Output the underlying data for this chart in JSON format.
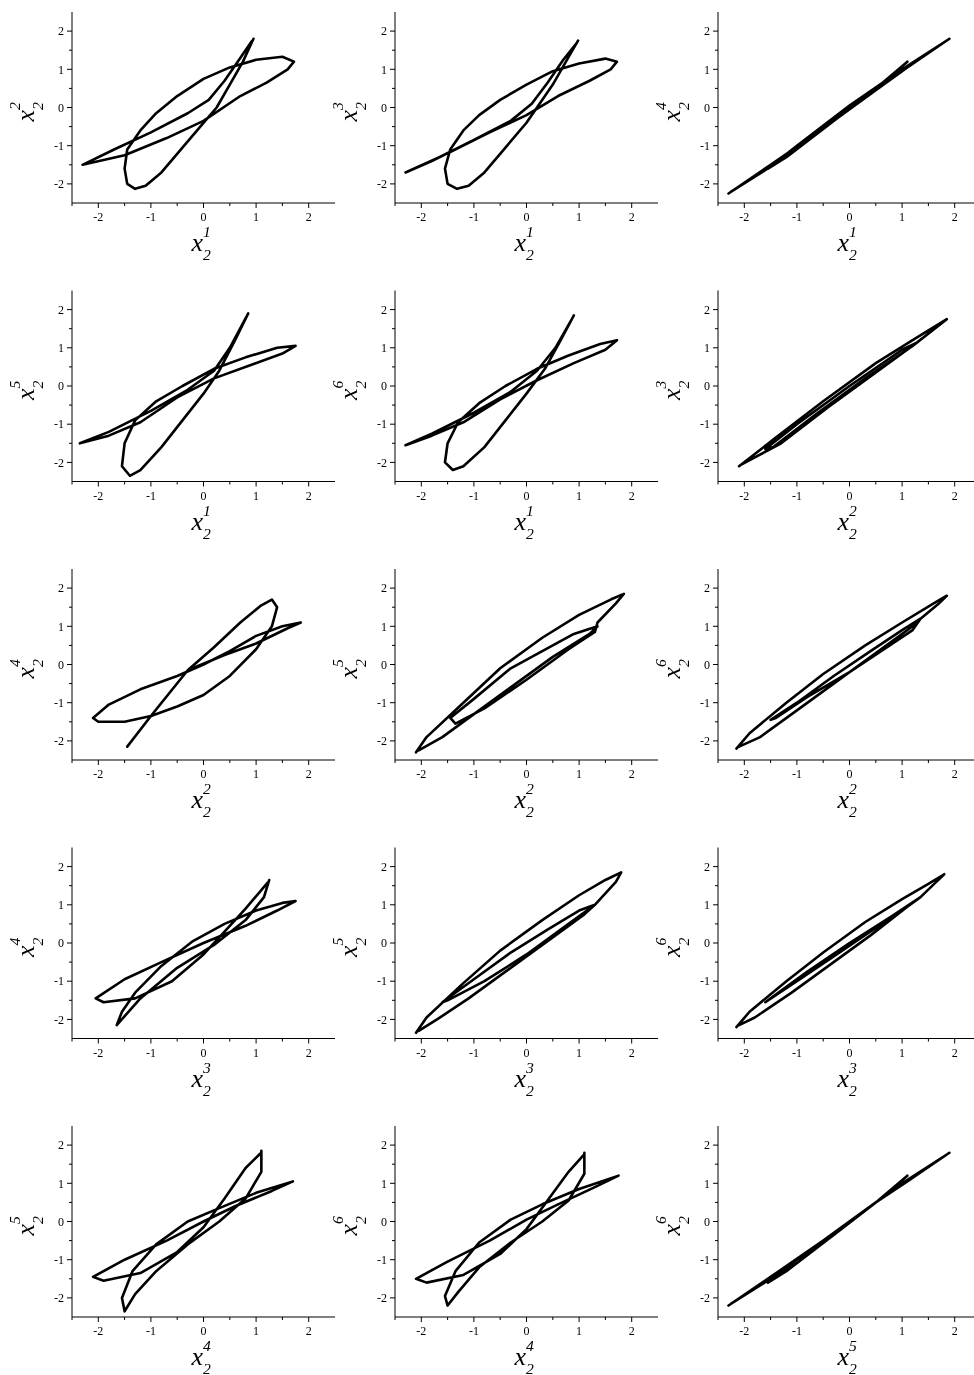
{
  "chart_data": [
    {
      "type": "line",
      "xlabel": "x$_{2}$$^{1}$",
      "ylabel": "x$_{2}$$^{2}$",
      "xlim": [
        -2.5,
        2.5
      ],
      "ylim": [
        -2.5,
        2.5
      ],
      "xticks": [
        {
          "value": -2.5,
          "label": null
        },
        -2,
        {
          "value": -1.5,
          "label": null
        },
        -1,
        {
          "value": -0.5,
          "label": null
        },
        0,
        {
          "value": 0.5,
          "label": null
        },
        1,
        {
          "value": 1.5,
          "label": null
        },
        2
      ],
      "yticks": [
        -2,
        {
          "value": -1.5,
          "label": null
        },
        -1,
        {
          "value": -0.5,
          "label": null
        },
        0,
        {
          "value": 0.5,
          "label": null
        },
        1,
        {
          "value": 1.5,
          "label": null
        },
        2
      ],
      "series": [
        {
          "color": "#000000",
          "x": [
            0.95,
            0.75,
            0.5,
            0.25,
            0,
            -0.4,
            -0.8,
            -1.1,
            -1.3,
            -1.45,
            -1.5,
            -1.45,
            -1.2,
            -0.9,
            -0.5,
            0,
            0.5,
            1.0,
            1.5,
            1.72,
            1.6,
            1.2,
            0.7,
            0,
            -0.7,
            -1.5,
            -2.3,
            -1.7,
            -1.0,
            -0.3,
            0.1,
            0.4,
            0.65,
            0.92
          ],
          "values": [
            1.8,
            1.2,
            0.6,
            0.0,
            -0.4,
            -1.05,
            -1.7,
            -2.05,
            -2.13,
            -2.0,
            -1.6,
            -1.1,
            -0.6,
            -0.15,
            0.3,
            0.75,
            1.05,
            1.25,
            1.33,
            1.2,
            1.0,
            0.65,
            0.3,
            -0.35,
            -0.8,
            -1.25,
            -1.5,
            -1.1,
            -0.65,
            -0.15,
            0.2,
            0.7,
            1.2,
            1.74
          ]
        }
      ]
    },
    {
      "type": "line",
      "xlabel": "x$_{2}$$^{1}$",
      "ylabel": "x$_{2}$$^{3}$",
      "xlim": [
        -2.5,
        2.5
      ],
      "ylim": [
        -2.5,
        2.5
      ],
      "xticks": [
        {
          "value": -2.5,
          "label": null
        },
        -2,
        {
          "value": -1.5,
          "label": null
        },
        -1,
        {
          "value": -0.5,
          "label": null
        },
        0,
        {
          "value": 0.5,
          "label": null
        },
        1,
        {
          "value": 1.5,
          "label": null
        },
        2
      ],
      "yticks": [
        -2,
        {
          "value": -1.5,
          "label": null
        },
        -1,
        {
          "value": -0.5,
          "label": null
        },
        0,
        {
          "value": 0.5,
          "label": null
        },
        1,
        {
          "value": 1.5,
          "label": null
        },
        2
      ],
      "series": [
        {
          "color": "#000000",
          "x": [
            0.98,
            0.75,
            0.5,
            0.2,
            0,
            -0.4,
            -0.8,
            -1.1,
            -1.32,
            -1.5,
            -1.55,
            -1.45,
            -1.2,
            -0.9,
            -0.5,
            0,
            0.5,
            1.0,
            1.5,
            1.72,
            1.6,
            1.2,
            0.6,
            0,
            -0.7,
            -1.5,
            -2.3,
            -1.8,
            -1.0,
            -0.3,
            0.1,
            0.4,
            0.7,
            0.95
          ],
          "values": [
            1.75,
            1.2,
            0.6,
            0.0,
            -0.4,
            -1.05,
            -1.7,
            -2.05,
            -2.13,
            -2.0,
            -1.6,
            -1.1,
            -0.6,
            -0.2,
            0.2,
            0.6,
            0.95,
            1.15,
            1.28,
            1.2,
            1.0,
            0.7,
            0.3,
            -0.2,
            -0.65,
            -1.2,
            -1.7,
            -1.4,
            -0.85,
            -0.35,
            0.1,
            0.65,
            1.25,
            1.68
          ]
        }
      ]
    },
    {
      "type": "line",
      "xlabel": "x$_{2}$$^{1}$",
      "ylabel": "x$_{2}$$^{4}$",
      "xlim": [
        -2.5,
        2.5
      ],
      "ylim": [
        -2.5,
        2.5
      ],
      "xticks": [
        {
          "value": -2.5,
          "label": null
        },
        -2,
        {
          "value": -1.5,
          "label": null
        },
        -1,
        {
          "value": -0.5,
          "label": null
        },
        0,
        {
          "value": 0.5,
          "label": null
        },
        1,
        {
          "value": 1.5,
          "label": null
        },
        2
      ],
      "yticks": [
        -2,
        {
          "value": -1.5,
          "label": null
        },
        -1,
        {
          "value": -0.5,
          "label": null
        },
        0,
        {
          "value": 0.5,
          "label": null
        },
        1,
        {
          "value": 1.5,
          "label": null
        },
        2
      ],
      "series": [
        {
          "color": "#000000",
          "x": [
            -2.3,
            -1.5,
            -0.5,
            0.5,
            1.1,
            1.9,
            1.0,
            0,
            -1.0,
            -1.55,
            -1.2,
            -0.3,
            0.6,
            1.1,
            0.5,
            -0.5,
            -1.5,
            -2.25
          ],
          "values": [
            -2.25,
            -1.5,
            -0.55,
            0.45,
            1.05,
            1.8,
            1.0,
            0.05,
            -1.0,
            -1.6,
            -1.3,
            -0.35,
            0.6,
            1.2,
            0.5,
            -0.5,
            -1.55,
            -2.2
          ]
        }
      ]
    },
    {
      "type": "line",
      "xlabel": "x$_{2}$$^{1}$",
      "ylabel": "x$_{2}$$^{5}$",
      "xlim": [
        -2.5,
        2.5
      ],
      "ylim": [
        -2.5,
        2.5
      ],
      "xticks": [
        {
          "value": -2.5,
          "label": null
        },
        -2,
        {
          "value": -1.5,
          "label": null
        },
        -1,
        {
          "value": -0.5,
          "label": null
        },
        0,
        {
          "value": 0.5,
          "label": null
        },
        1,
        {
          "value": 1.5,
          "label": null
        },
        2
      ],
      "yticks": [
        -2,
        {
          "value": -1.5,
          "label": null
        },
        -1,
        {
          "value": -0.5,
          "label": null
        },
        0,
        {
          "value": 0.5,
          "label": null
        },
        1,
        {
          "value": 1.5,
          "label": null
        },
        2
      ],
      "series": [
        {
          "color": "#000000",
          "x": [
            0.85,
            0.6,
            0.3,
            0,
            -0.4,
            -0.8,
            -1.2,
            -1.4,
            -1.55,
            -1.5,
            -1.3,
            -0.9,
            -0.4,
            0.2,
            0.8,
            1.4,
            1.75,
            1.5,
            0.9,
            0.2,
            -0.5,
            -1.2,
            -1.8,
            -2.35,
            -1.8,
            -1.0,
            -0.3,
            0.2,
            0.5,
            0.82
          ],
          "values": [
            1.9,
            1.2,
            0.4,
            -0.2,
            -0.9,
            -1.6,
            -2.2,
            -2.35,
            -2.1,
            -1.5,
            -0.9,
            -0.4,
            0.0,
            0.45,
            0.75,
            1.0,
            1.05,
            0.85,
            0.55,
            0.2,
            -0.3,
            -0.95,
            -1.3,
            -1.5,
            -1.2,
            -0.65,
            -0.1,
            0.4,
            1.0,
            1.82
          ]
        }
      ]
    },
    {
      "type": "line",
      "xlabel": "x$_{2}$$^{1}$",
      "ylabel": "x$_{2}$$^{6}$",
      "xlim": [
        -2.5,
        2.5
      ],
      "ylim": [
        -2.5,
        2.5
      ],
      "xticks": [
        {
          "value": -2.5,
          "label": null
        },
        -2,
        {
          "value": -1.5,
          "label": null
        },
        -1,
        {
          "value": -0.5,
          "label": null
        },
        0,
        {
          "value": 0.5,
          "label": null
        },
        1,
        {
          "value": 1.5,
          "label": null
        },
        2
      ],
      "yticks": [
        -2,
        {
          "value": -1.5,
          "label": null
        },
        -1,
        {
          "value": -0.5,
          "label": null
        },
        0,
        {
          "value": 0.5,
          "label": null
        },
        1,
        {
          "value": 1.5,
          "label": null
        },
        2
      ],
      "series": [
        {
          "color": "#000000",
          "x": [
            0.9,
            0.65,
            0.35,
            0,
            -0.4,
            -0.8,
            -1.2,
            -1.4,
            -1.55,
            -1.5,
            -1.3,
            -0.9,
            -0.4,
            0.2,
            0.8,
            1.4,
            1.72,
            1.5,
            0.9,
            0.2,
            -0.5,
            -1.2,
            -1.8,
            -2.3,
            -1.8,
            -1.0,
            -0.3,
            0.2,
            0.55,
            0.87
          ],
          "values": [
            1.85,
            1.2,
            0.45,
            -0.2,
            -0.9,
            -1.6,
            -2.1,
            -2.2,
            -2.0,
            -1.5,
            -0.95,
            -0.45,
            0.0,
            0.45,
            0.8,
            1.1,
            1.2,
            0.95,
            0.6,
            0.15,
            -0.35,
            -0.95,
            -1.3,
            -1.55,
            -1.25,
            -0.7,
            -0.15,
            0.4,
            1.0,
            1.77
          ]
        }
      ]
    },
    {
      "type": "line",
      "xlabel": "x$_{2}$$^{2}$",
      "ylabel": "x$_{2}$$^{3}$",
      "xlim": [
        -2.5,
        2.5
      ],
      "ylim": [
        -2.5,
        2.5
      ],
      "xticks": [
        {
          "value": -2.5,
          "label": null
        },
        -2,
        {
          "value": -1.5,
          "label": null
        },
        -1,
        {
          "value": -0.5,
          "label": null
        },
        0,
        {
          "value": 0.5,
          "label": null
        },
        1,
        {
          "value": 1.5,
          "label": null
        },
        2
      ],
      "yticks": [
        -2,
        {
          "value": -1.5,
          "label": null
        },
        -1,
        {
          "value": -0.5,
          "label": null
        },
        0,
        {
          "value": 0.5,
          "label": null
        },
        1,
        {
          "value": 1.5,
          "label": null
        },
        2
      ],
      "series": [
        {
          "color": "#000000",
          "x": [
            -2.1,
            -1.4,
            -0.5,
            0.5,
            1.2,
            1.85,
            1.2,
            0.3,
            -0.6,
            -1.45,
            -1.6,
            -1.0,
            0,
            1.0,
            1.3,
            0.6,
            -0.4,
            -1.3,
            -2.05
          ],
          "values": [
            -2.1,
            -1.35,
            -0.4,
            0.6,
            1.2,
            1.75,
            1.05,
            0.2,
            -0.7,
            -1.6,
            -1.65,
            -1.0,
            0.0,
            0.95,
            1.15,
            0.45,
            -0.55,
            -1.5,
            -2.05
          ]
        }
      ]
    },
    {
      "type": "line",
      "xlabel": "x$_{2}$$^{2}$",
      "ylabel": "x$_{2}$$^{4}$",
      "xlim": [
        -2.5,
        2.5
      ],
      "ylim": [
        -2.5,
        2.5
      ],
      "xticks": [
        {
          "value": -2.5,
          "label": null
        },
        -2,
        {
          "value": -1.5,
          "label": null
        },
        -1,
        {
          "value": -0.5,
          "label": null
        },
        0,
        {
          "value": 0.5,
          "label": null
        },
        1,
        {
          "value": 1.5,
          "label": null
        },
        2
      ],
      "yticks": [
        -2,
        {
          "value": -1.5,
          "label": null
        },
        -1,
        {
          "value": -0.5,
          "label": null
        },
        0,
        {
          "value": 0.5,
          "label": null
        },
        1,
        {
          "value": 1.5,
          "label": null
        },
        2
      ],
      "series": [
        {
          "color": "#000000",
          "x": [
            -1.45,
            -1.0,
            -0.3,
            0.2,
            0.7,
            1.1,
            1.3,
            1.4,
            1.3,
            1.0,
            0.5,
            0,
            -0.5,
            -1.0,
            -1.5,
            -2.0,
            -2.1,
            -1.8,
            -1.2,
            -0.5,
            0,
            0.5,
            1.0,
            1.5,
            1.85,
            1.6,
            1.0,
            0.4,
            -0.3
          ],
          "values": [
            -2.15,
            -1.35,
            -0.15,
            0.45,
            1.1,
            1.55,
            1.7,
            1.5,
            1.0,
            0.4,
            -0.3,
            -0.8,
            -1.1,
            -1.35,
            -1.5,
            -1.5,
            -1.4,
            -1.05,
            -0.65,
            -0.3,
            0.0,
            0.35,
            0.75,
            1.0,
            1.1,
            0.95,
            0.55,
            0.25,
            -0.15
          ]
        }
      ]
    },
    {
      "type": "line",
      "xlabel": "x$_{2}$$^{2}$",
      "ylabel": "x$_{2}$$^{5}$",
      "xlim": [
        -2.5,
        2.5
      ],
      "ylim": [
        -2.5,
        2.5
      ],
      "xticks": [
        {
          "value": -2.5,
          "label": null
        },
        -2,
        {
          "value": -1.5,
          "label": null
        },
        -1,
        {
          "value": -0.5,
          "label": null
        },
        0,
        {
          "value": 0.5,
          "label": null
        },
        1,
        {
          "value": 1.5,
          "label": null
        },
        2
      ],
      "yticks": [
        -2,
        {
          "value": -1.5,
          "label": null
        },
        -1,
        {
          "value": -0.5,
          "label": null
        },
        0,
        {
          "value": 0.5,
          "label": null
        },
        1,
        {
          "value": 1.5,
          "label": null
        },
        2
      ],
      "series": [
        {
          "color": "#000000",
          "x": [
            -2.1,
            -1.9,
            -1.2,
            -0.5,
            0.3,
            1.0,
            1.6,
            1.85,
            1.7,
            1.35,
            1.3,
            0.8,
            0,
            -0.8,
            -1.35,
            -1.45,
            -1.0,
            -0.3,
            0.3,
            0.9,
            1.35,
            1.2,
            0.5,
            -0.3,
            -1.0,
            -1.6,
            -2.05
          ],
          "values": [
            -2.3,
            -1.9,
            -1.0,
            -0.1,
            0.7,
            1.3,
            1.7,
            1.85,
            1.6,
            1.1,
            0.85,
            0.4,
            -0.4,
            -1.15,
            -1.55,
            -1.4,
            -0.9,
            -0.1,
            0.35,
            0.8,
            1.0,
            0.8,
            0.2,
            -0.6,
            -1.3,
            -1.9,
            -2.25
          ]
        }
      ]
    },
    {
      "type": "line",
      "xlabel": "x$_{2}$$^{2}$",
      "ylabel": "x$_{2}$$^{6}$",
      "xlim": [
        -2.5,
        2.5
      ],
      "ylim": [
        -2.5,
        2.5
      ],
      "xticks": [
        {
          "value": -2.5,
          "label": null
        },
        -2,
        {
          "value": -1.5,
          "label": null
        },
        -1,
        {
          "value": -0.5,
          "label": null
        },
        0,
        {
          "value": 0.5,
          "label": null
        },
        1,
        {
          "value": 1.5,
          "label": null
        },
        2
      ],
      "yticks": [
        -2,
        {
          "value": -1.5,
          "label": null
        },
        -1,
        {
          "value": -0.5,
          "label": null
        },
        0,
        {
          "value": 0.5,
          "label": null
        },
        1,
        {
          "value": 1.5,
          "label": null
        },
        2
      ],
      "series": [
        {
          "color": "#000000",
          "x": [
            -2.15,
            -1.9,
            -1.2,
            -0.5,
            0.3,
            1.0,
            1.6,
            1.85,
            1.7,
            1.35,
            1.2,
            0.6,
            0,
            -0.8,
            -1.4,
            -1.5,
            -1.0,
            -0.3,
            0.4,
            1.0,
            1.35,
            1.2,
            0.5,
            -0.3,
            -1.0,
            -1.7,
            -2.1
          ],
          "values": [
            -2.2,
            -1.8,
            -1.0,
            -0.25,
            0.5,
            1.1,
            1.6,
            1.8,
            1.6,
            1.2,
            0.9,
            0.35,
            -0.2,
            -0.85,
            -1.4,
            -1.45,
            -1.0,
            -0.3,
            0.35,
            0.9,
            1.2,
            1.0,
            0.3,
            -0.5,
            -1.2,
            -1.9,
            -2.15
          ]
        }
      ]
    },
    {
      "type": "line",
      "xlabel": "x$_{2}$$^{3}$",
      "ylabel": "x$_{2}$$^{4}$",
      "xlim": [
        -2.5,
        2.5
      ],
      "ylim": [
        -2.5,
        2.5
      ],
      "xticks": [
        {
          "value": -2.5,
          "label": null
        },
        -2,
        {
          "value": -1.5,
          "label": null
        },
        -1,
        {
          "value": -0.5,
          "label": null
        },
        0,
        {
          "value": 0.5,
          "label": null
        },
        1,
        {
          "value": 1.5,
          "label": null
        },
        2
      ],
      "yticks": [
        -2,
        {
          "value": -1.5,
          "label": null
        },
        -1,
        {
          "value": -0.5,
          "label": null
        },
        0,
        {
          "value": 0.5,
          "label": null
        },
        1,
        {
          "value": 1.5,
          "label": null
        },
        2
      ],
      "series": [
        {
          "color": "#000000",
          "x": [
            1.25,
            1.15,
            0.8,
            0.2,
            -0.5,
            -1.2,
            -1.65,
            -1.55,
            -1.3,
            -0.8,
            -0.2,
            0.4,
            1.0,
            1.5,
            1.75,
            1.4,
            0.8,
            0,
            -0.8,
            -1.5,
            -2.05,
            -1.9,
            -1.3,
            -0.6,
            0,
            0.4,
            0.8,
            1.22
          ],
          "values": [
            1.65,
            1.2,
            0.6,
            -0.05,
            -0.65,
            -1.45,
            -2.15,
            -1.8,
            -1.3,
            -0.6,
            0.05,
            0.5,
            0.85,
            1.05,
            1.1,
            0.85,
            0.45,
            0.0,
            -0.5,
            -0.95,
            -1.45,
            -1.55,
            -1.45,
            -1.0,
            -0.3,
            0.3,
            0.9,
            1.58
          ]
        }
      ]
    },
    {
      "type": "line",
      "xlabel": "x$_{2}$$^{3}$",
      "ylabel": "x$_{2}$$^{5}$",
      "xlim": [
        -2.5,
        2.5
      ],
      "ylim": [
        -2.5,
        2.5
      ],
      "xticks": [
        {
          "value": -2.5,
          "label": null
        },
        -2,
        {
          "value": -1.5,
          "label": null
        },
        -1,
        {
          "value": -0.5,
          "label": null
        },
        0,
        {
          "value": 0.5,
          "label": null
        },
        1,
        {
          "value": 1.5,
          "label": null
        },
        2
      ],
      "yticks": [
        -2,
        {
          "value": -1.5,
          "label": null
        },
        -1,
        {
          "value": -0.5,
          "label": null
        },
        0,
        {
          "value": 0.5,
          "label": null
        },
        1,
        {
          "value": 1.5,
          "label": null
        },
        2
      ],
      "series": [
        {
          "color": "#000000",
          "x": [
            -2.1,
            -1.9,
            -1.2,
            -0.5,
            0.3,
            1.0,
            1.5,
            1.8,
            1.7,
            1.3,
            0.8,
            0,
            -0.8,
            -1.5,
            -1.6,
            -1.0,
            -0.3,
            0.4,
            1.0,
            1.3,
            1.1,
            0.4,
            -0.4,
            -1.1,
            -1.7,
            -2.05
          ],
          "values": [
            -2.35,
            -1.95,
            -1.05,
            -0.2,
            0.6,
            1.25,
            1.65,
            1.85,
            1.6,
            1.0,
            0.5,
            -0.3,
            -1.0,
            -1.5,
            -1.55,
            -0.95,
            -0.25,
            0.35,
            0.85,
            1.0,
            0.75,
            0.05,
            -0.75,
            -1.45,
            -2.0,
            -2.3
          ]
        }
      ]
    },
    {
      "type": "line",
      "xlabel": "x$_{2}$$^{3}$",
      "ylabel": "x$_{2}$$^{6}$",
      "xlim": [
        -2.5,
        2.5
      ],
      "ylim": [
        -2.5,
        2.5
      ],
      "xticks": [
        {
          "value": -2.5,
          "label": null
        },
        -2,
        {
          "value": -1.5,
          "label": null
        },
        -1,
        {
          "value": -0.5,
          "label": null
        },
        0,
        {
          "value": 0.5,
          "label": null
        },
        1,
        {
          "value": 1.5,
          "label": null
        },
        2
      ],
      "yticks": [
        -2,
        {
          "value": -1.5,
          "label": null
        },
        -1,
        {
          "value": -0.5,
          "label": null
        },
        0,
        {
          "value": 0.5,
          "label": null
        },
        1,
        {
          "value": 1.5,
          "label": null
        },
        2
      ],
      "series": [
        {
          "color": "#000000",
          "x": [
            -2.15,
            -1.9,
            -1.2,
            -0.5,
            0.3,
            1.0,
            1.5,
            1.8,
            1.65,
            1.35,
            0.8,
            0,
            -0.8,
            -1.5,
            -1.6,
            -1.0,
            -0.3,
            0.4,
            1.0,
            1.35,
            1.1,
            0.4,
            -0.4,
            -1.1,
            -1.8,
            -2.1
          ],
          "values": [
            -2.2,
            -1.8,
            -1.0,
            -0.25,
            0.55,
            1.15,
            1.55,
            1.8,
            1.6,
            1.2,
            0.7,
            0.0,
            -0.75,
            -1.45,
            -1.55,
            -1.0,
            -0.35,
            0.3,
            0.85,
            1.2,
            0.95,
            0.2,
            -0.6,
            -1.3,
            -1.95,
            -2.15
          ]
        }
      ]
    },
    {
      "type": "line",
      "xlabel": "x$_{2}$$^{4}$",
      "ylabel": "x$_{2}$$^{5}$",
      "xlim": [
        -2.5,
        2.5
      ],
      "ylim": [
        -2.5,
        2.5
      ],
      "xticks": [
        {
          "value": -2.5,
          "label": null
        },
        -2,
        {
          "value": -1.5,
          "label": null
        },
        -1,
        {
          "value": -0.5,
          "label": null
        },
        0,
        {
          "value": 0.5,
          "label": null
        },
        1,
        {
          "value": 1.5,
          "label": null
        },
        2
      ],
      "yticks": [
        -2,
        {
          "value": -1.5,
          "label": null
        },
        -1,
        {
          "value": -0.5,
          "label": null
        },
        0,
        {
          "value": 0.5,
          "label": null
        },
        1,
        {
          "value": 1.5,
          "label": null
        },
        2
      ],
      "series": [
        {
          "color": "#000000",
          "x": [
            1.1,
            1.1,
            0.8,
            0.3,
            -0.3,
            -0.9,
            -1.3,
            -1.5,
            -1.55,
            -1.35,
            -0.9,
            -0.3,
            0.3,
            1.0,
            1.7,
            1.3,
            0.6,
            0,
            -0.7,
            -1.5,
            -2.1,
            -1.9,
            -1.2,
            -0.5,
            0,
            0.4,
            0.8,
            1.08
          ],
          "values": [
            1.85,
            1.3,
            0.6,
            0.0,
            -0.6,
            -1.3,
            -1.9,
            -2.35,
            -2.0,
            -1.3,
            -0.6,
            0.0,
            0.35,
            0.75,
            1.05,
            0.8,
            0.4,
            0.0,
            -0.5,
            -1.0,
            -1.45,
            -1.55,
            -1.35,
            -0.8,
            -0.15,
            0.6,
            1.4,
            1.78
          ]
        }
      ]
    },
    {
      "type": "line",
      "xlabel": "x$_{2}$$^{4}$",
      "ylabel": "x$_{2}$$^{6}$",
      "xlim": [
        -2.5,
        2.5
      ],
      "ylim": [
        -2.5,
        2.5
      ],
      "xticks": [
        {
          "value": -2.5,
          "label": null
        },
        -2,
        {
          "value": -1.5,
          "label": null
        },
        -1,
        {
          "value": -0.5,
          "label": null
        },
        0,
        {
          "value": 0.5,
          "label": null
        },
        1,
        {
          "value": 1.5,
          "label": null
        },
        2
      ],
      "yticks": [
        -2,
        {
          "value": -1.5,
          "label": null
        },
        -1,
        {
          "value": -0.5,
          "label": null
        },
        0,
        {
          "value": 0.5,
          "label": null
        },
        1,
        {
          "value": 1.5,
          "label": null
        },
        2
      ],
      "series": [
        {
          "color": "#000000",
          "x": [
            1.1,
            1.1,
            0.8,
            0.3,
            -0.3,
            -0.9,
            -1.3,
            -1.5,
            -1.55,
            -1.35,
            -0.9,
            -0.3,
            0.3,
            1.0,
            1.75,
            1.3,
            0.6,
            0,
            -0.7,
            -1.5,
            -2.1,
            -1.9,
            -1.2,
            -0.5,
            0,
            0.4,
            0.8,
            1.08
          ],
          "values": [
            1.8,
            1.25,
            0.55,
            0.0,
            -0.55,
            -1.2,
            -1.85,
            -2.2,
            -1.95,
            -1.3,
            -0.55,
            0.05,
            0.45,
            0.85,
            1.2,
            0.9,
            0.45,
            0.05,
            -0.5,
            -1.05,
            -1.5,
            -1.6,
            -1.4,
            -0.85,
            -0.2,
            0.55,
            1.3,
            1.73
          ]
        }
      ]
    },
    {
      "type": "line",
      "xlabel": "x$_{2}$$^{5}$",
      "ylabel": "x$_{2}$$^{6}$",
      "xlim": [
        -2.5,
        2.5
      ],
      "ylim": [
        -2.5,
        2.5
      ],
      "xticks": [
        {
          "value": -2.5,
          "label": null
        },
        -2,
        {
          "value": -1.5,
          "label": null
        },
        -1,
        {
          "value": -0.5,
          "label": null
        },
        0,
        {
          "value": 0.5,
          "label": null
        },
        1,
        {
          "value": 1.5,
          "label": null
        },
        2
      ],
      "yticks": [
        -2,
        {
          "value": -1.5,
          "label": null
        },
        -1,
        {
          "value": -0.5,
          "label": null
        },
        0,
        {
          "value": 0.5,
          "label": null
        },
        1,
        {
          "value": 1.5,
          "label": null
        },
        2
      ],
      "series": [
        {
          "color": "#000000",
          "x": [
            -2.3,
            -1.5,
            -0.5,
            0.5,
            1.1,
            1.9,
            1.0,
            0,
            -1.0,
            -1.55,
            -1.2,
            -0.3,
            0.6,
            1.1,
            0.5,
            -0.5,
            -1.5,
            -2.25
          ],
          "values": [
            -2.2,
            -1.45,
            -0.5,
            0.5,
            1.05,
            1.8,
            1.0,
            0.0,
            -1.0,
            -1.6,
            -1.3,
            -0.35,
            0.6,
            1.2,
            0.5,
            -0.5,
            -1.5,
            -2.15
          ]
        }
      ]
    }
  ]
}
